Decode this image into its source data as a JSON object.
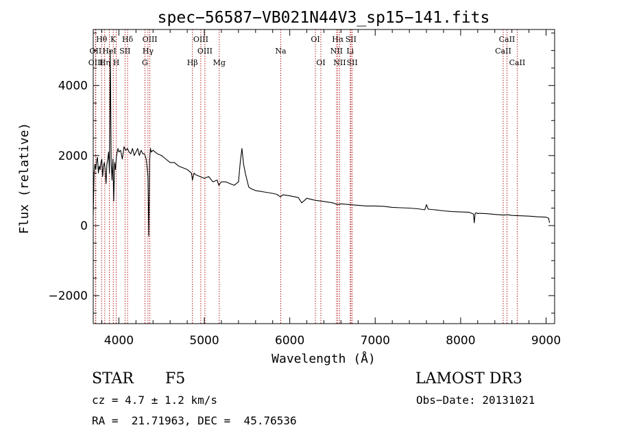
{
  "chart_data": {
    "type": "line",
    "title": "spec−56587−VB021N44V3_sp15−141.fits",
    "xlabel": "Wavelength (Å)",
    "ylabel": "Flux (relative)",
    "xlim": [
      3700,
      9100
    ],
    "ylim": [
      -2800,
      5600
    ],
    "x_ticks": [
      4000,
      5000,
      6000,
      7000,
      8000,
      9000
    ],
    "x_tick_labels": [
      "4000",
      "5000",
      "6000",
      "7000",
      "8000",
      "9000"
    ],
    "y_ticks": [
      -2000,
      0,
      2000,
      4000
    ],
    "y_tick_labels": [
      "−2000",
      "0",
      "2000",
      "4000"
    ],
    "grid": false,
    "line_color": "#000000",
    "marker_color": "#aa0000",
    "series": [
      {
        "name": "flux",
        "x": [
          3700,
          3710,
          3720,
          3730,
          3740,
          3750,
          3760,
          3770,
          3780,
          3790,
          3800,
          3810,
          3820,
          3830,
          3840,
          3850,
          3860,
          3870,
          3880,
          3890,
          3900,
          3910,
          3920,
          3930,
          3940,
          3950,
          3960,
          3970,
          3980,
          3990,
          4000,
          4020,
          4040,
          4060,
          4080,
          4100,
          4120,
          4140,
          4160,
          4180,
          4200,
          4220,
          4240,
          4260,
          4280,
          4300,
          4320,
          4340,
          4350,
          4360,
          4370,
          4380,
          4400,
          4450,
          4500,
          4550,
          4600,
          4650,
          4700,
          4750,
          4800,
          4850,
          4861,
          4880,
          4900,
          4950,
          5000,
          5050,
          5100,
          5150,
          5170,
          5200,
          5250,
          5300,
          5350,
          5400,
          5420,
          5440,
          5460,
          5480,
          5500,
          5520,
          5550,
          5600,
          5700,
          5800,
          5850,
          5890,
          5920,
          6000,
          6100,
          6140,
          6200,
          6300,
          6400,
          6500,
          6563,
          6600,
          6700,
          6800,
          6900,
          7000,
          7100,
          7200,
          7300,
          7400,
          7500,
          7580,
          7600,
          7620,
          7700,
          7800,
          7900,
          8000,
          8100,
          8150,
          8160,
          8170,
          8190,
          8200,
          8210,
          8300,
          8400,
          8500,
          8550,
          8600,
          8700,
          8800,
          8900,
          9000,
          9030,
          9040
        ],
        "values": [
          300,
          1500,
          1750,
          1600,
          1850,
          1950,
          1500,
          1700,
          1600,
          1800,
          1900,
          1400,
          1700,
          1800,
          1600,
          1200,
          1750,
          1900,
          2100,
          1500,
          5000,
          1800,
          1300,
          1900,
          700,
          1800,
          1600,
          1950,
          2100,
          2200,
          2100,
          2150,
          1900,
          2250,
          2150,
          2200,
          2100,
          2050,
          2200,
          2000,
          2100,
          2200,
          2000,
          2150,
          2050,
          2050,
          1900,
          1400,
          -300,
          1900,
          2200,
          2100,
          2150,
          2050,
          2000,
          1900,
          1800,
          1800,
          1700,
          1650,
          1600,
          1500,
          1300,
          1500,
          1450,
          1400,
          1350,
          1400,
          1250,
          1300,
          1150,
          1250,
          1250,
          1200,
          1150,
          1250,
          1800,
          2200,
          1750,
          1500,
          1300,
          1100,
          1050,
          1000,
          960,
          920,
          890,
          820,
          880,
          850,
          800,
          650,
          780,
          720,
          690,
          650,
          600,
          620,
          600,
          580,
          560,
          560,
          550,
          520,
          510,
          500,
          480,
          450,
          600,
          470,
          450,
          420,
          400,
          390,
          380,
          330,
          80,
          350,
          360,
          340,
          350,
          340,
          320,
          300,
          310,
          290,
          280,
          270,
          250,
          240,
          210,
          80
        ]
      }
    ],
    "line_markers": [
      {
        "label": "Hθ",
        "wavelength": 3798,
        "row": 1
      },
      {
        "label": "OII",
        "wavelength": 3727,
        "row": 2
      },
      {
        "label": "OIII",
        "wavelength": 3730,
        "row": 3
      },
      {
        "label": "Hη",
        "wavelength": 3835,
        "row": 3
      },
      {
        "label": "K",
        "wavelength": 3934,
        "row": 1
      },
      {
        "label": "HeI",
        "wavelength": 3889,
        "row": 2
      },
      {
        "label": "H",
        "wavelength": 3969,
        "row": 3
      },
      {
        "label": "SII",
        "wavelength": 4072,
        "row": 2
      },
      {
        "label": "Hδ",
        "wavelength": 4102,
        "row": 1
      },
      {
        "label": "OIII",
        "wavelength": 4363,
        "row": 1
      },
      {
        "label": "Hγ",
        "wavelength": 4341,
        "row": 2
      },
      {
        "label": "G",
        "wavelength": 4305,
        "row": 3
      },
      {
        "label": "Hβ",
        "wavelength": 4861,
        "row": 3
      },
      {
        "label": "OIII",
        "wavelength": 4959,
        "row": 1
      },
      {
        "label": "OIII",
        "wavelength": 5007,
        "row": 2
      },
      {
        "label": "Mg",
        "wavelength": 5175,
        "row": 3
      },
      {
        "label": "Na",
        "wavelength": 5894,
        "row": 2
      },
      {
        "label": "OI",
        "wavelength": 6300,
        "row": 1
      },
      {
        "label": "OI",
        "wavelength": 6364,
        "row": 3
      },
      {
        "label": "Hα",
        "wavelength": 6563,
        "row": 1
      },
      {
        "label": "NII",
        "wavelength": 6548,
        "row": 2
      },
      {
        "label": "NII",
        "wavelength": 6584,
        "row": 3
      },
      {
        "label": "SII",
        "wavelength": 6716,
        "row": 1
      },
      {
        "label": "Li",
        "wavelength": 6708,
        "row": 2
      },
      {
        "label": "SII",
        "wavelength": 6731,
        "row": 3
      },
      {
        "label": "CaII",
        "wavelength": 8542,
        "row": 1
      },
      {
        "label": "CaII",
        "wavelength": 8498,
        "row": 2
      },
      {
        "label": "CaII",
        "wavelength": 8662,
        "row": 3
      }
    ]
  },
  "info": {
    "object_class": "STAR",
    "subclass": "F5",
    "survey": "LAMOST DR3",
    "redshift": "cz = 4.7 ± 1.2 km/s",
    "obs_date": "Obs−Date: 20131021",
    "coords": "RA =  21.71963, DEC =  45.76536"
  }
}
